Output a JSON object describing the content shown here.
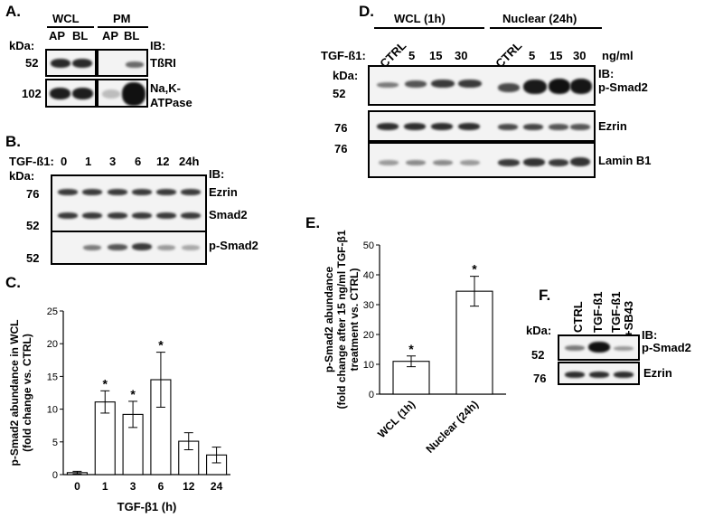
{
  "panels": {
    "a": "A.",
    "b": "B.",
    "c": "C.",
    "d": "D.",
    "e": "E.",
    "f": "F."
  },
  "panel_a": {
    "groups": [
      "WCL",
      "PM"
    ],
    "lanes": [
      "AP",
      "BL",
      "AP",
      "BL"
    ],
    "kda_label": "kDa:",
    "markers": [
      "52",
      "102"
    ],
    "ib_label": "IB:",
    "proteins": [
      "TßRI",
      "Na,K-",
      "ATPase"
    ]
  },
  "panel_b": {
    "treatment_label": "TGF-ß1:",
    "timepoints": [
      "0",
      "1",
      "3",
      "6",
      "12",
      "24h"
    ],
    "kda_label": "kDa:",
    "markers": [
      "76",
      "52",
      "52"
    ],
    "ib_label": "IB:",
    "proteins": [
      "Ezrin",
      "Smad2",
      "p-Smad2"
    ]
  },
  "panel_d": {
    "groups": [
      "WCL (1h)",
      "Nuclear (24h)"
    ],
    "treatment_label": "TGF-ß1:",
    "lanes": [
      "CTRL",
      "5",
      "15",
      "30",
      "CTRL",
      "5",
      "15",
      "30"
    ],
    "unit": "ng/ml",
    "kda_label": "kDa:",
    "markers": [
      "52",
      "76",
      "76"
    ],
    "ib_label": "IB:",
    "proteins": [
      "p-Smad2",
      "Ezrin",
      "Lamin B1"
    ]
  },
  "panel_f": {
    "lanes": [
      "CTRL",
      "TGF-ß1",
      "TGF-ß1",
      "+SB43"
    ],
    "kda_label": "kDa:",
    "markers": [
      "52",
      "76"
    ],
    "ib_label": "IB:",
    "proteins": [
      "p-Smad2",
      "Ezrin"
    ]
  },
  "chart_data": [
    {
      "panel": "C",
      "type": "bar",
      "categories": [
        "0",
        "1",
        "3",
        "6",
        "12",
        "24"
      ],
      "values": [
        0.3,
        11.1,
        9.2,
        14.5,
        5.1,
        3.0
      ],
      "errors": [
        0.2,
        1.7,
        2.0,
        4.2,
        1.3,
        1.2
      ],
      "significant": [
        false,
        true,
        true,
        true,
        false,
        false
      ],
      "sig_marker": "*",
      "xlabel": "TGF-β1 (h)",
      "ylabel": [
        "p-Smad2 abundance in WCL",
        "(fold change vs. CTRL)"
      ],
      "ylim": [
        0,
        25
      ],
      "yticks": [
        "0",
        "5",
        "10",
        "15",
        "20",
        "25"
      ],
      "bar_color": "#ffffff"
    },
    {
      "panel": "E",
      "type": "bar",
      "categories": [
        "WCL (1h)",
        "Nuclear (24h)"
      ],
      "values": [
        11.0,
        34.5
      ],
      "errors": [
        1.8,
        5.0
      ],
      "significant": [
        true,
        true
      ],
      "sig_marker": "*",
      "ylabel": [
        "p-Smad2 abundance",
        "(fold change after 15 ng/ml TGF-β1",
        "treatment vs. CTRL)"
      ],
      "ylim": [
        0,
        50
      ],
      "yticks": [
        "0",
        "10",
        "20",
        "30",
        "40",
        "50"
      ],
      "bar_color": "#ffffff"
    }
  ]
}
